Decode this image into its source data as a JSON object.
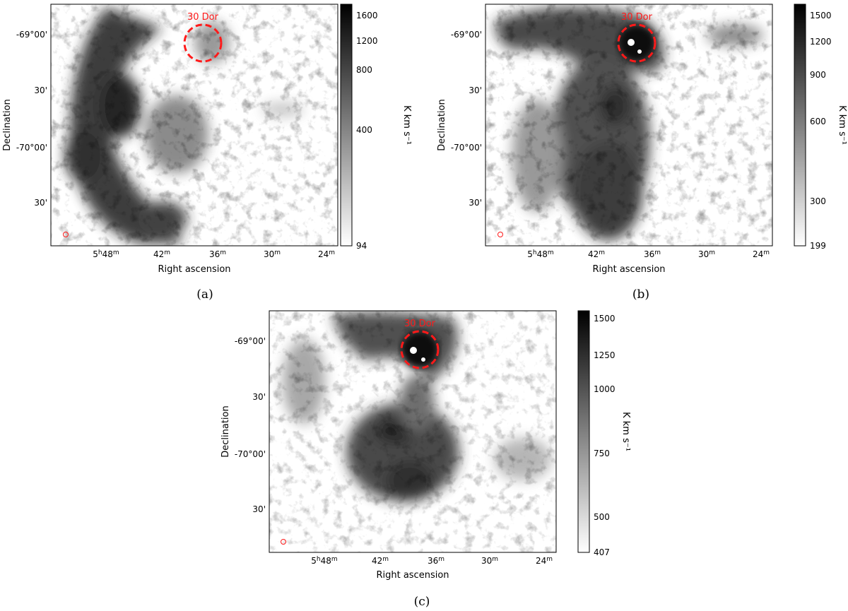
{
  "panels": [
    {
      "id": "a",
      "caption": "(a)",
      "annotation": "30 Dor",
      "xlabel": "Right ascension",
      "ylabel": "Declination",
      "x_ticks": [
        "5h48m",
        "42m",
        "36m",
        "30m",
        "24m"
      ],
      "y_ticks": [
        "-69°00'",
        "30'",
        "-70°00'",
        "30'"
      ],
      "colorbar": {
        "label": "K km s⁻¹",
        "ticks": [
          "94",
          "400",
          "800",
          "1200",
          "1600"
        ],
        "min": 94,
        "max": 1700
      }
    },
    {
      "id": "b",
      "caption": "(b)",
      "annotation": "30 Dor",
      "xlabel": "Right ascension",
      "ylabel": "Declination",
      "x_ticks": [
        "5h48m",
        "42m",
        "36m",
        "30m",
        "24m"
      ],
      "y_ticks": [
        "-69°00'",
        "30'",
        "-70°00'",
        "30'"
      ],
      "colorbar": {
        "label": "K km s⁻¹",
        "ticks": [
          "199",
          "300",
          "600",
          "900",
          "1200",
          "1500"
        ],
        "min": 199,
        "max": 1600
      }
    },
    {
      "id": "c",
      "caption": "(c)",
      "annotation": "30 Dor",
      "xlabel": "Right ascension",
      "ylabel": "Declination",
      "x_ticks": [
        "5h48m",
        "42m",
        "36m",
        "30m",
        "24m"
      ],
      "y_ticks": [
        "-69°00'",
        "30'",
        "-70°00'",
        "30'"
      ],
      "colorbar": {
        "label": "K km s⁻¹",
        "ticks": [
          "407",
          "500",
          "750",
          "1000",
          "1250",
          "1500"
        ],
        "min": 407,
        "max": 1520
      }
    }
  ],
  "colors": {
    "annotation": "#ff1a1a",
    "colormap_low": "#ffffff",
    "colormap_high": "#000000"
  }
}
